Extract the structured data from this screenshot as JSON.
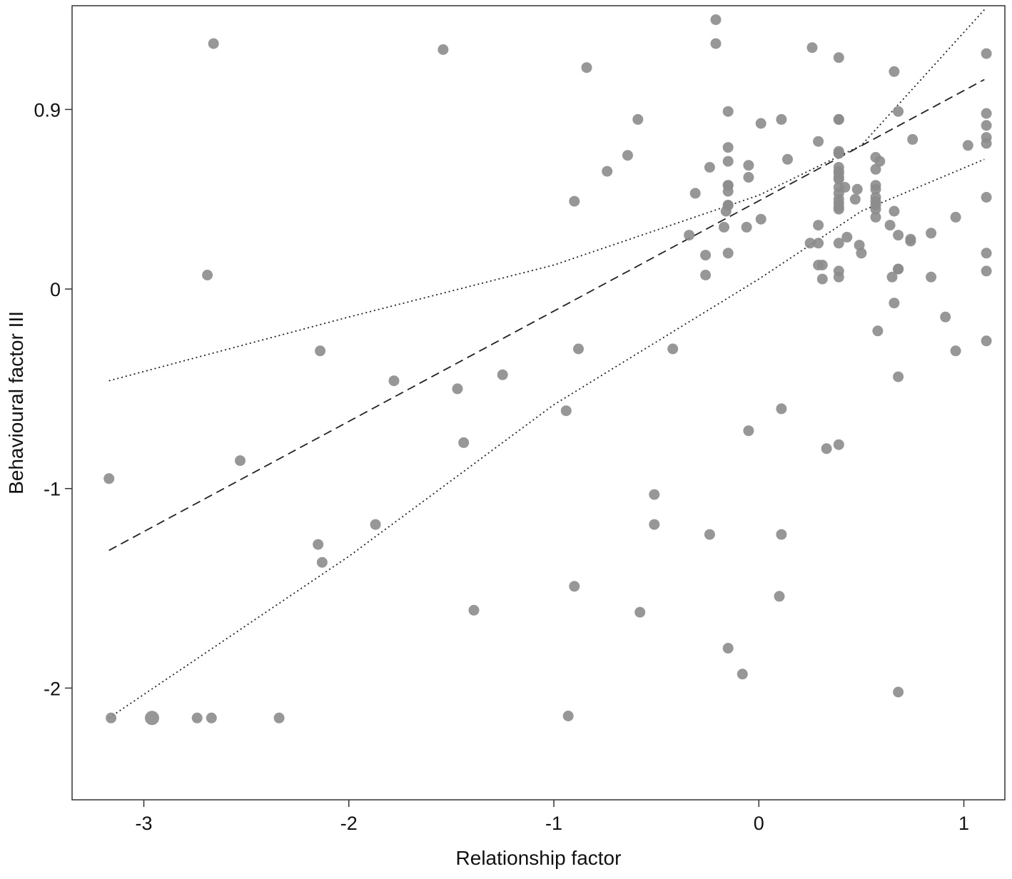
{
  "chart_data": {
    "type": "scatter",
    "title": "",
    "xlabel": "Relationship factor",
    "ylabel": "Behavioural factor III",
    "xlim": [
      -3.35,
      1.2
    ],
    "ylim": [
      -2.56,
      1.42
    ],
    "x_ticks": [
      -3,
      -2,
      -1,
      0,
      1
    ],
    "x_tick_labels": [
      "-3",
      "-2",
      "-1",
      "0",
      "1"
    ],
    "y_ticks": [
      -2,
      -1,
      0,
      0.9
    ],
    "y_tick_labels": [
      "-2",
      "-1",
      "0",
      "0.9"
    ],
    "grid": false,
    "point_color": "#8c8c8c",
    "points": [
      {
        "x": -2.66,
        "y": 1.23
      },
      {
        "x": -1.54,
        "y": 1.2
      },
      {
        "x": -0.84,
        "y": 1.11
      },
      {
        "x": -0.21,
        "y": 1.35
      },
      {
        "x": -0.21,
        "y": 1.23
      },
      {
        "x": 0.26,
        "y": 1.21
      },
      {
        "x": 0.39,
        "y": 1.16
      },
      {
        "x": 1.11,
        "y": 1.18
      },
      {
        "x": 0.66,
        "y": 1.09
      },
      {
        "x": -0.15,
        "y": 0.89
      },
      {
        "x": 0.68,
        "y": 0.89
      },
      {
        "x": 1.11,
        "y": 0.88
      },
      {
        "x": -0.59,
        "y": 0.85
      },
      {
        "x": 0.11,
        "y": 0.85
      },
      {
        "x": 0.39,
        "y": 0.85
      },
      {
        "x": 0.39,
        "y": 0.85
      },
      {
        "x": 0.01,
        "y": 0.83
      },
      {
        "x": 1.11,
        "y": 0.82
      },
      {
        "x": 1.11,
        "y": 0.76
      },
      {
        "x": 0.75,
        "y": 0.75
      },
      {
        "x": 0.29,
        "y": 0.74
      },
      {
        "x": 1.11,
        "y": 0.73
      },
      {
        "x": 1.02,
        "y": 0.72
      },
      {
        "x": -0.15,
        "y": 0.71
      },
      {
        "x": 0.39,
        "y": 0.69
      },
      {
        "x": 0.39,
        "y": 0.68
      },
      {
        "x": 0.39,
        "y": 0.68
      },
      {
        "x": -0.64,
        "y": 0.67
      },
      {
        "x": 0.57,
        "y": 0.66
      },
      {
        "x": 0.14,
        "y": 0.65
      },
      {
        "x": 0.59,
        "y": 0.64
      },
      {
        "x": -0.15,
        "y": 0.64
      },
      {
        "x": -0.05,
        "y": 0.62
      },
      {
        "x": -0.24,
        "y": 0.61
      },
      {
        "x": 0.39,
        "y": 0.61
      },
      {
        "x": 0.57,
        "y": 0.6
      },
      {
        "x": -0.74,
        "y": 0.59
      },
      {
        "x": 0.39,
        "y": 0.59
      },
      {
        "x": 0.39,
        "y": 0.58
      },
      {
        "x": -0.05,
        "y": 0.56
      },
      {
        "x": 0.39,
        "y": 0.56
      },
      {
        "x": 0.39,
        "y": 0.55
      },
      {
        "x": -0.15,
        "y": 0.52
      },
      {
        "x": -0.15,
        "y": 0.52
      },
      {
        "x": 0.57,
        "y": 0.52
      },
      {
        "x": 0.39,
        "y": 0.51
      },
      {
        "x": 0.42,
        "y": 0.51
      },
      {
        "x": 0.57,
        "y": 0.5
      },
      {
        "x": -0.15,
        "y": 0.49
      },
      {
        "x": 0.48,
        "y": 0.5
      },
      {
        "x": 0.39,
        "y": 0.48
      },
      {
        "x": -0.31,
        "y": 0.48
      },
      {
        "x": 1.11,
        "y": 0.46
      },
      {
        "x": 0.57,
        "y": 0.46
      },
      {
        "x": 0.39,
        "y": 0.45
      },
      {
        "x": 0.47,
        "y": 0.45
      },
      {
        "x": -0.9,
        "y": 0.44
      },
      {
        "x": 0.57,
        "y": 0.44
      },
      {
        "x": 0.39,
        "y": 0.43
      },
      {
        "x": -0.15,
        "y": 0.42
      },
      {
        "x": 0.57,
        "y": 0.42
      },
      {
        "x": -0.15,
        "y": 0.42
      },
      {
        "x": 0.39,
        "y": 0.41
      },
      {
        "x": 0.39,
        "y": 0.4
      },
      {
        "x": -0.16,
        "y": 0.39
      },
      {
        "x": 0.57,
        "y": 0.4
      },
      {
        "x": 0.66,
        "y": 0.39
      },
      {
        "x": 0.57,
        "y": 0.36
      },
      {
        "x": 0.96,
        "y": 0.36
      },
      {
        "x": 0.01,
        "y": 0.35
      },
      {
        "x": 0.29,
        "y": 0.32
      },
      {
        "x": 0.64,
        "y": 0.32
      },
      {
        "x": -0.17,
        "y": 0.31
      },
      {
        "x": -0.06,
        "y": 0.31
      },
      {
        "x": -0.34,
        "y": 0.27
      },
      {
        "x": 0.68,
        "y": 0.27
      },
      {
        "x": 0.84,
        "y": 0.28
      },
      {
        "x": 0.43,
        "y": 0.26
      },
      {
        "x": 0.74,
        "y": 0.25
      },
      {
        "x": 0.74,
        "y": 0.24
      },
      {
        "x": 0.25,
        "y": 0.23
      },
      {
        "x": 0.29,
        "y": 0.23
      },
      {
        "x": 0.39,
        "y": 0.23
      },
      {
        "x": 0.49,
        "y": 0.22
      },
      {
        "x": 1.11,
        "y": 0.18
      },
      {
        "x": -0.15,
        "y": 0.18
      },
      {
        "x": 0.5,
        "y": 0.18
      },
      {
        "x": -0.26,
        "y": 0.17
      },
      {
        "x": 0.31,
        "y": 0.12
      },
      {
        "x": 0.29,
        "y": 0.12
      },
      {
        "x": 0.68,
        "y": 0.1
      },
      {
        "x": 0.68,
        "y": 0.1
      },
      {
        "x": 0.39,
        "y": 0.09
      },
      {
        "x": 1.11,
        "y": 0.09
      },
      {
        "x": -2.69,
        "y": 0.07
      },
      {
        "x": -0.26,
        "y": 0.07
      },
      {
        "x": 0.39,
        "y": 0.06
      },
      {
        "x": 0.65,
        "y": 0.06
      },
      {
        "x": 0.84,
        "y": 0.06
      },
      {
        "x": 0.31,
        "y": 0.05
      },
      {
        "x": 0.66,
        "y": -0.07
      },
      {
        "x": 0.91,
        "y": -0.14
      },
      {
        "x": 0.58,
        "y": -0.21
      },
      {
        "x": 1.11,
        "y": -0.26
      },
      {
        "x": -2.14,
        "y": -0.31
      },
      {
        "x": -0.88,
        "y": -0.3
      },
      {
        "x": -0.42,
        "y": -0.3
      },
      {
        "x": 0.96,
        "y": -0.31
      },
      {
        "x": -1.25,
        "y": -0.43
      },
      {
        "x": 0.68,
        "y": -0.44
      },
      {
        "x": -1.78,
        "y": -0.46
      },
      {
        "x": -1.47,
        "y": -0.5
      },
      {
        "x": 0.11,
        "y": -0.6
      },
      {
        "x": -0.94,
        "y": -0.61
      },
      {
        "x": -0.05,
        "y": -0.71
      },
      {
        "x": -1.44,
        "y": -0.77
      },
      {
        "x": 0.39,
        "y": -0.78
      },
      {
        "x": 0.33,
        "y": -0.8
      },
      {
        "x": -2.53,
        "y": -0.86
      },
      {
        "x": -3.17,
        "y": -0.95
      },
      {
        "x": -0.51,
        "y": -1.03
      },
      {
        "x": -1.87,
        "y": -1.18
      },
      {
        "x": -0.51,
        "y": -1.18
      },
      {
        "x": -0.24,
        "y": -1.23
      },
      {
        "x": 0.11,
        "y": -1.23
      },
      {
        "x": -2.15,
        "y": -1.28
      },
      {
        "x": -2.13,
        "y": -1.37
      },
      {
        "x": -0.9,
        "y": -1.49
      },
      {
        "x": 0.1,
        "y": -1.54
      },
      {
        "x": -1.39,
        "y": -1.61
      },
      {
        "x": -0.58,
        "y": -1.62
      },
      {
        "x": -0.15,
        "y": -1.8
      },
      {
        "x": -0.08,
        "y": -1.93
      },
      {
        "x": 0.68,
        "y": -2.02
      },
      {
        "x": -0.93,
        "y": -2.14
      },
      {
        "x": -3.16,
        "y": -2.15
      },
      {
        "x": -2.74,
        "y": -2.15
      },
      {
        "x": -2.67,
        "y": -2.15
      },
      {
        "x": -2.34,
        "y": -2.15
      },
      {
        "x": -2.96,
        "y": -2.15,
        "size": 2
      }
    ],
    "fit_line": {
      "style": "dashed",
      "x": [
        -3.17,
        1.1
      ],
      "y": [
        -1.31,
        1.05
      ]
    },
    "ci_upper": {
      "style": "dotted",
      "x": [
        -3.17,
        -2.0,
        -1.0,
        0.0,
        0.5,
        1.1
      ],
      "y": [
        -0.46,
        -0.14,
        0.12,
        0.47,
        0.72,
        1.4
      ]
    },
    "ci_lower": {
      "style": "dotted",
      "x": [
        -3.17,
        -2.0,
        -1.0,
        0.0,
        0.5,
        1.1
      ],
      "y": [
        -2.15,
        -1.34,
        -0.58,
        0.05,
        0.39,
        0.65
      ]
    }
  }
}
